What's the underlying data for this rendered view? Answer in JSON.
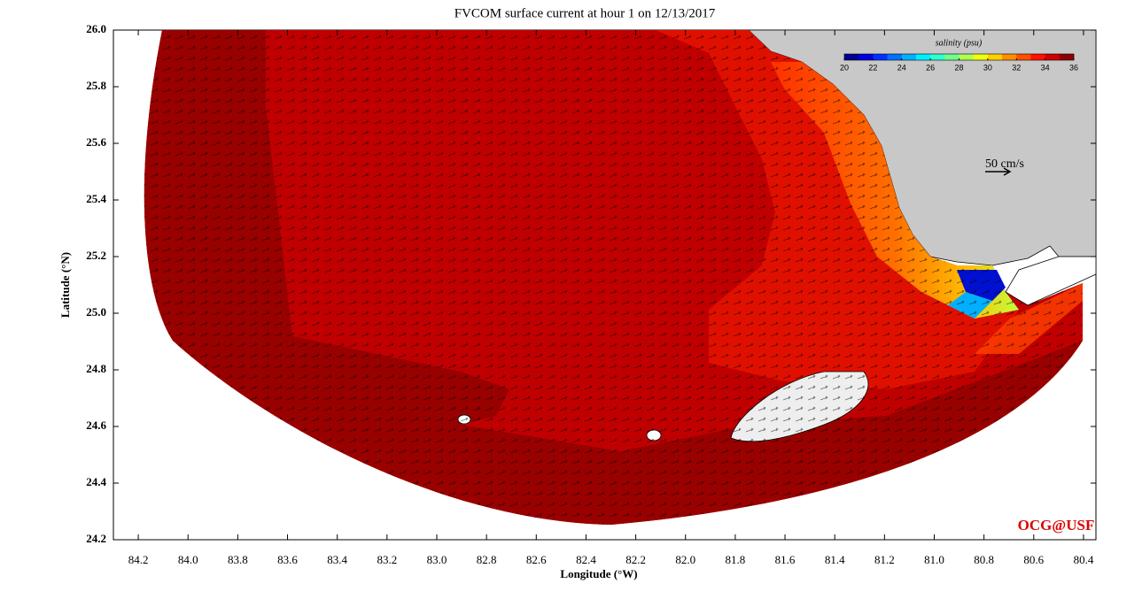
{
  "title": "FVCOM surface current at hour 1 on 12/13/2017",
  "x_axis": {
    "label": "Longitude (°W)",
    "lim": [
      84.3,
      80.35
    ],
    "ticks": [
      84.2,
      {
        "value": 84,
        "label": "84.0"
      },
      83.8,
      83.6,
      83.4,
      83.2,
      {
        "value": 83,
        "label": "83.0"
      },
      82.8,
      82.6,
      82.4,
      82.2,
      {
        "value": 82,
        "label": "82.0"
      },
      81.8,
      81.6,
      81.4,
      81.2,
      {
        "value": 81,
        "label": "81.0"
      },
      80.8,
      80.6,
      80.4
    ]
  },
  "y_axis": {
    "label": "Latitude (°N)",
    "lim": [
      24.2,
      26.0
    ],
    "ticks": [
      24.2,
      24.4,
      24.6,
      24.8,
      {
        "value": 25,
        "label": "25.0"
      },
      25.2,
      25.4,
      25.6,
      25.8,
      {
        "value": 26,
        "label": "26.0"
      }
    ]
  },
  "colorbar": {
    "title": "salinity (psu)",
    "lim": [
      20,
      36
    ],
    "ticks": [
      20,
      22,
      24,
      26,
      28,
      30,
      32,
      34,
      36
    ],
    "colors": [
      "#00008f",
      "#0000df",
      "#0030ff",
      "#0070ff",
      "#00b0ff",
      "#00efff",
      "#30ffcf",
      "#70ff8f",
      "#b0ff50",
      "#efff10",
      "#ffcf00",
      "#ff8f00",
      "#ff5000",
      "#ff1000",
      "#cf0000",
      "#8f0000"
    ]
  },
  "scale_label": "50 cm/s",
  "credit": "OCG@USF"
}
